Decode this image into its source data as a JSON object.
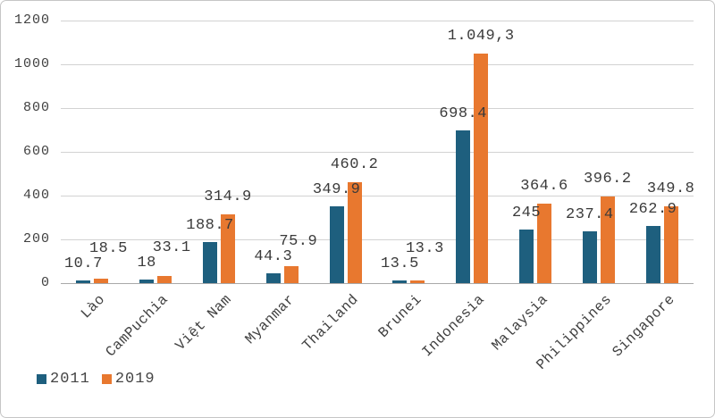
{
  "chart_data": {
    "type": "bar",
    "title": "",
    "xlabel": "",
    "ylabel": "",
    "categories": [
      "Lào",
      "CamPuchia",
      "Việt Nam",
      "Myanmar",
      "Thailand",
      "Brunei",
      "Indonesia",
      "Malaysia",
      "Philippines",
      "Singapore"
    ],
    "series": [
      {
        "name": "2011",
        "color": "#1e5f7e",
        "values": [
          10.7,
          18,
          188.7,
          44.3,
          349.9,
          13.5,
          698.4,
          245,
          237.4,
          262.9
        ],
        "labels": [
          "10.7",
          "18",
          "188.7",
          "44.3",
          "349.9",
          "13.5",
          "698.4",
          "245",
          "237.4",
          "262.9"
        ]
      },
      {
        "name": "2019",
        "color": "#e8782f",
        "values": [
          18.5,
          33.1,
          314.9,
          75.9,
          460.2,
          13.3,
          1049.3,
          364.6,
          396.2,
          349.8
        ],
        "labels": [
          "18.5",
          "33.1",
          "314.9",
          "75.9",
          "460.2",
          "13.3",
          "1.049,3",
          "364.6",
          "396.2",
          "349.8"
        ]
      }
    ],
    "ylim": [
      0,
      1200
    ],
    "yticks": [
      0,
      200,
      400,
      600,
      800,
      1000,
      1200
    ],
    "ytick_labels": [
      "0",
      "200",
      "400",
      "600",
      "800",
      "1000",
      "1200"
    ],
    "grid": true,
    "legend_position": "bottom-left",
    "colors": {
      "gridline": "#d2d2d2",
      "axis_line": "#a9a9a9",
      "tick_text": "#404040",
      "label_text": "#3a3a3a"
    }
  }
}
